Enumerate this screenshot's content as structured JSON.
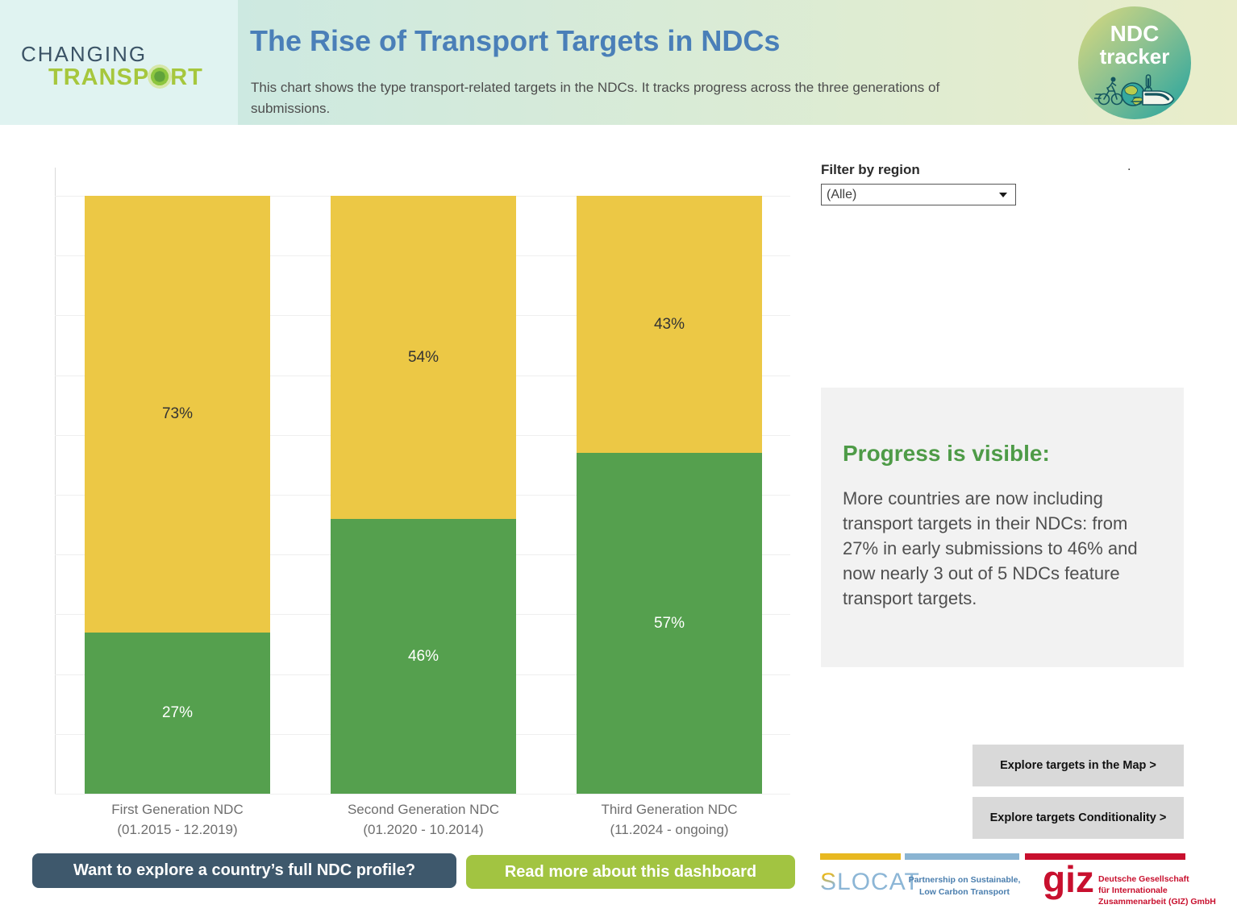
{
  "header": {
    "brand": {
      "line1": "CHANGING",
      "word2_prefix": "TRANSP",
      "word2_suffix": "RT"
    },
    "title": "The Rise of Transport Targets in NDCs",
    "subtitle": "This chart shows the type transport-related targets in the NDCs. It tracks progress across the three generations of submissions.",
    "badge": {
      "line1": "NDC",
      "line2": "tracker"
    }
  },
  "filter": {
    "label": "Filter by region",
    "value": "(Alle)"
  },
  "stray_dot": ".",
  "chart_data": {
    "type": "bar",
    "stacked": true,
    "title": "",
    "categories": [
      {
        "label": "First Generation NDC",
        "sublabel": "(01.2015 - 12.2019)"
      },
      {
        "label": "Second Generation NDC",
        "sublabel": "(01.2020 - 10.2014)"
      },
      {
        "label": "Third Generation NDC",
        "sublabel": "(11.2024 - ongoing)"
      }
    ],
    "series": [
      {
        "id": "without-transport-target",
        "position": "top",
        "color": "#ecc845",
        "label_color": "#333333",
        "values": [
          73,
          54,
          43
        ]
      },
      {
        "id": "with-transport-target",
        "position": "bottom",
        "color": "#55a04e",
        "label_color": "#ffffff",
        "values": [
          27,
          46,
          57
        ]
      }
    ],
    "value_suffix": "%",
    "ylim": [
      0,
      100
    ],
    "grid": true,
    "legend": "none"
  },
  "insight": {
    "heading": "Progress is visible:",
    "body": "More countries are now including transport targets in their NDCs: from 27% in early submissions to 46% and now nearly 3 out of 5 NDCs feature transport targets."
  },
  "buttons": {
    "explore_map": "Explore targets in the Map >",
    "explore_conditionality": "Explore targets Conditionality >",
    "profile": "Want to explore a country’s full NDC profile?",
    "read_more": "Read more about this dashboard"
  },
  "footer": {
    "slocat": {
      "wordmark_initial": "S",
      "wordmark_rest": "LOCAT",
      "tagline_line1": "Partnership on Sustainable,",
      "tagline_line2": "Low Carbon Transport"
    },
    "giz": {
      "wordmark": "giz",
      "line1": "Deutsche Gesellschaft",
      "line2": "für Internationale",
      "line3": "Zusammenarbeit (GIZ) GmbH"
    }
  },
  "colors": {
    "bar_yellow": "#ecc845",
    "bar_green": "#55a04e",
    "title_blue": "#4a7fb8",
    "insight_green": "#4e9b47",
    "dark_button": "#3e586c",
    "green_button": "#a2c441",
    "giz_red": "#c8102e",
    "slocat_blue": "#8cb6d6",
    "separator_yellow": "#e8b820",
    "separator_blue": "#8ab4d2",
    "separator_red": "#c8102e"
  }
}
